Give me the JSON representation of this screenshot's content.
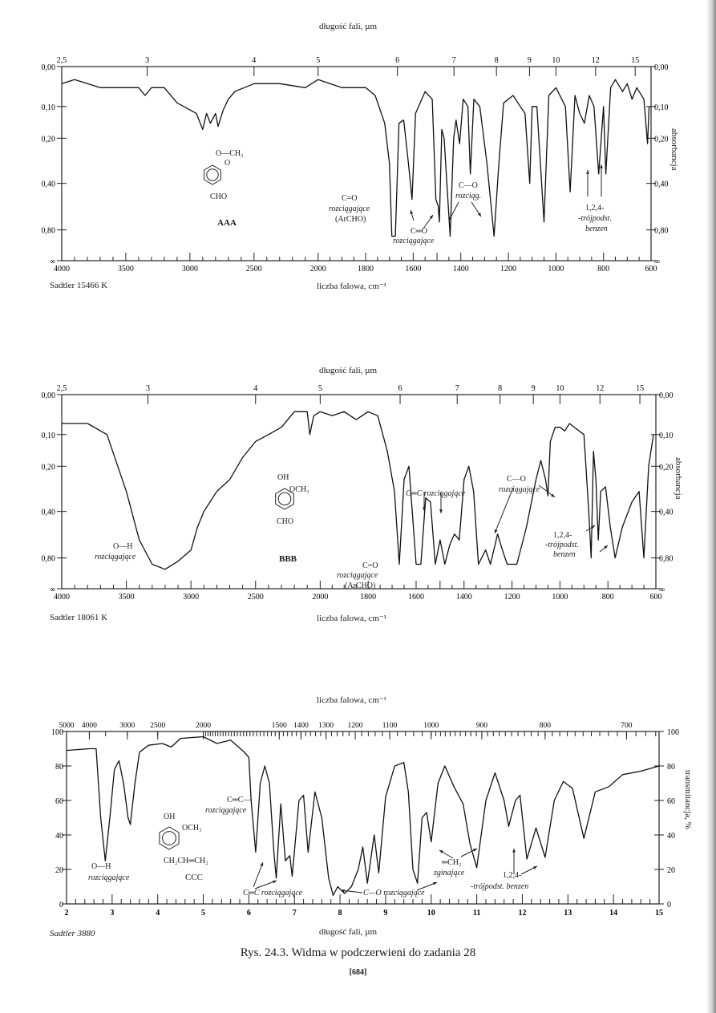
{
  "chart_data": [
    {
      "type": "line",
      "name_label": "AAA",
      "source": "Sadtler 15466 K",
      "top_axis_title": "długość fali, µm",
      "bottom_axis_title": "liczba falowa, cm⁻¹",
      "right_axis_title": "absorbancja",
      "y_scale": "absorbance (linear in transmittance)",
      "x_ticks_wavenumber": [
        "4000",
        "3500",
        "3000",
        "2500",
        "2000",
        "1800",
        "1600",
        "1400",
        "1200",
        "1000",
        "800",
        "600"
      ],
      "x_ticks_wavelength": [
        "2,5",
        "3",
        "4",
        "5",
        "6",
        "7",
        "8",
        "9",
        "10",
        "12",
        "15"
      ],
      "y_ticks_left": [
        "0,00",
        "0,10",
        "0,20",
        "0,40",
        "0,80",
        "∞"
      ],
      "y_ticks_right": [
        "0,00",
        "0,10",
        "0,20",
        "0,40",
        "0,80",
        "∞"
      ],
      "xlim": [
        4000,
        600
      ],
      "ylim": [
        0,
        "∞"
      ],
      "x": [
        4000,
        3900,
        3700,
        3400,
        3350,
        3300,
        3200,
        3100,
        3000,
        2950,
        2900,
        2870,
        2840,
        2800,
        2780,
        2740,
        2700,
        2650,
        2500,
        2300,
        2100,
        2000,
        1900,
        1800,
        1760,
        1720,
        1700,
        1690,
        1675,
        1660,
        1640,
        1620,
        1605,
        1590,
        1550,
        1520,
        1505,
        1495,
        1490,
        1480,
        1470,
        1445,
        1430,
        1420,
        1405,
        1390,
        1370,
        1360,
        1345,
        1320,
        1290,
        1260,
        1240,
        1220,
        1180,
        1150,
        1130,
        1110,
        1100,
        1080,
        1050,
        1030,
        1000,
        960,
        940,
        920,
        900,
        880,
        860,
        840,
        820,
        800,
        790,
        770,
        750,
        720,
        700,
        680,
        660,
        630,
        615,
        608
      ],
      "y": [
        0.04,
        0.03,
        0.05,
        0.05,
        0.07,
        0.05,
        0.05,
        0.09,
        0.11,
        0.12,
        0.17,
        0.12,
        0.15,
        0.12,
        0.16,
        0.11,
        0.08,
        0.06,
        0.04,
        0.04,
        0.05,
        0.03,
        0.05,
        0.05,
        0.07,
        0.15,
        0.3,
        0.9,
        0.9,
        0.15,
        0.14,
        0.3,
        0.5,
        0.12,
        0.06,
        0.08,
        0.5,
        0.55,
        0.7,
        0.17,
        0.2,
        0.9,
        0.2,
        0.14,
        0.22,
        0.08,
        0.1,
        0.35,
        0.08,
        0.1,
        0.3,
        0.9,
        0.3,
        0.09,
        0.07,
        0.1,
        0.12,
        0.4,
        0.1,
        0.1,
        0.7,
        0.07,
        0.05,
        0.1,
        0.45,
        0.07,
        0.12,
        0.15,
        0.07,
        0.1,
        0.35,
        0.1,
        0.35,
        0.05,
        0.03,
        0.06,
        0.04,
        0.08,
        0.05,
        0.08,
        0.22,
        0.1
      ],
      "annotations": {
        "co_arch_1": "C=O",
        "co_arch_2": "rozciągające",
        "co_arch_3": "(ArCHO)",
        "cc_1": "C═O",
        "cc_2": "rozciągające",
        "co_1": "C—O",
        "co_2": "rozciąg.",
        "tri_1": "1,2,4-",
        "tri_2": "-trójpodst.",
        "tri_3": "benzen",
        "struct_top": "O—CH₂",
        "struct_o": "O",
        "struct_cho": "CHO"
      }
    },
    {
      "type": "line",
      "name_label": "BBB",
      "source": "Sadtler 18061 K",
      "top_axis_title": "długość fali, µm",
      "bottom_axis_title": "liczba falowa, cm⁻¹",
      "right_axis_title": "absorbancja",
      "y_scale": "absorbance (linear in transmittance)",
      "x_ticks_wavenumber": [
        "4000",
        "3500",
        "3000",
        "2500",
        "2000",
        "1800",
        "1600",
        "1400",
        "1200",
        "1000",
        "800",
        "600"
      ],
      "x_ticks_wavelength": [
        "2,5",
        "3",
        "4",
        "5",
        "6",
        "7",
        "8",
        "9",
        "10",
        "12",
        "15"
      ],
      "y_ticks_left": [
        "0,00",
        "0,10",
        "0,20",
        "0,40",
        "0,80",
        "∞"
      ],
      "y_ticks_right": [
        "0,00",
        "0,10",
        "0,20",
        "0,40",
        "0,80",
        "∞"
      ],
      "xlim": [
        4000,
        600
      ],
      "ylim": [
        0,
        "∞"
      ],
      "x": [
        4000,
        3800,
        3650,
        3500,
        3400,
        3300,
        3200,
        3100,
        3000,
        2950,
        2900,
        2800,
        2700,
        2600,
        2500,
        2400,
        2300,
        2200,
        2100,
        2080,
        2050,
        2000,
        1950,
        1900,
        1850,
        1800,
        1760,
        1720,
        1690,
        1670,
        1650,
        1630,
        1600,
        1580,
        1560,
        1540,
        1520,
        1500,
        1480,
        1460,
        1440,
        1420,
        1400,
        1380,
        1360,
        1340,
        1310,
        1290,
        1260,
        1240,
        1220,
        1180,
        1140,
        1100,
        1080,
        1060,
        1050,
        1040,
        1020,
        1000,
        980,
        960,
        940,
        900,
        880,
        870,
        860,
        850,
        840,
        830,
        810,
        790,
        770,
        740,
        700,
        670,
        650,
        630,
        610
      ],
      "y": [
        0.07,
        0.07,
        0.1,
        0.3,
        0.6,
        0.9,
        1.0,
        0.85,
        0.7,
        0.5,
        0.4,
        0.3,
        0.25,
        0.17,
        0.12,
        0.1,
        0.08,
        0.04,
        0.04,
        0.1,
        0.05,
        0.04,
        0.05,
        0.04,
        0.06,
        0.04,
        0.05,
        0.15,
        0.3,
        0.9,
        0.25,
        0.2,
        0.9,
        0.9,
        0.33,
        0.35,
        0.9,
        0.6,
        0.9,
        0.65,
        0.55,
        0.6,
        0.25,
        0.2,
        0.3,
        0.9,
        0.7,
        0.9,
        0.55,
        0.7,
        0.9,
        0.9,
        0.5,
        0.25,
        0.18,
        0.25,
        0.32,
        0.12,
        0.08,
        0.08,
        0.09,
        0.07,
        0.08,
        0.1,
        0.4,
        0.8,
        0.15,
        0.25,
        0.6,
        0.3,
        0.28,
        0.5,
        0.8,
        0.5,
        0.35,
        0.3,
        0.8,
        0.2,
        0.1
      ],
      "annotations": {
        "oh_1": "O—H",
        "oh_2": "rozciągające",
        "cc_label": "C═C rozciągające",
        "co_1": "C—O",
        "co_2": "rozciągające",
        "co_arch_1": "C=O",
        "co_arch_2": "rozciągające",
        "co_arch_3": "(ArCHO)",
        "tri_1": "1,2,4-",
        "tri_2": "-trójpodst.",
        "tri_3": "benzen",
        "struct_oh": "OH",
        "struct_och3": "OCH₃",
        "struct_cho": "CHO"
      }
    },
    {
      "type": "line",
      "name_label": "CCC",
      "source": "Sadtler 3880",
      "top_axis_title": "liczba falowa, cm⁻¹",
      "bottom_axis_title": "długość fali, µm",
      "right_axis_title": "transmitancja, %",
      "y_scale": "transmittance %",
      "x_ticks_wavelength": [
        "2",
        "3",
        "4",
        "5",
        "6",
        "7",
        "8",
        "9",
        "10",
        "11",
        "12",
        "13",
        "14",
        "15"
      ],
      "x_ticks_wavenumber": [
        "5000",
        "4000",
        "3000",
        "2500",
        "2000",
        "1500",
        "1400",
        "1300",
        "1200",
        "1100",
        "1000",
        "900",
        "800",
        "700"
      ],
      "y_ticks_left": [
        "0",
        "20",
        "40",
        "60",
        "80",
        "100"
      ],
      "y_ticks_right": [
        "0",
        "20",
        "40",
        "60",
        "80",
        "100"
      ],
      "xlim": [
        2,
        15
      ],
      "ylim": [
        0,
        100
      ],
      "x": [
        2,
        2.5,
        2.65,
        2.75,
        2.85,
        2.95,
        3.05,
        3.15,
        3.25,
        3.35,
        3.4,
        3.5,
        3.6,
        3.8,
        4.1,
        4.3,
        4.5,
        5,
        5.3,
        5.6,
        5.9,
        6.0,
        6.05,
        6.15,
        6.25,
        6.35,
        6.45,
        6.55,
        6.6,
        6.7,
        6.8,
        6.9,
        6.95,
        7.1,
        7.2,
        7.3,
        7.45,
        7.6,
        7.75,
        7.85,
        7.95,
        8.1,
        8.25,
        8.4,
        8.5,
        8.6,
        8.75,
        8.85,
        9.0,
        9.2,
        9.4,
        9.5,
        9.6,
        9.7,
        9.8,
        9.9,
        10.0,
        10.15,
        10.3,
        10.5,
        10.7,
        10.85,
        11.0,
        11.2,
        11.4,
        11.6,
        11.7,
        11.85,
        11.95,
        12.1,
        12.3,
        12.5,
        12.7,
        12.9,
        13.1,
        13.35,
        13.6,
        13.9,
        14.2,
        14.6,
        15
      ],
      "y": [
        89,
        90,
        90,
        50,
        25,
        50,
        78,
        83,
        70,
        50,
        46,
        70,
        88,
        92,
        93,
        91,
        96,
        97,
        93,
        95,
        88,
        85,
        60,
        30,
        70,
        80,
        70,
        30,
        15,
        58,
        25,
        28,
        16,
        60,
        63,
        30,
        65,
        50,
        15,
        5,
        10,
        6,
        10,
        20,
        33,
        12,
        40,
        18,
        62,
        80,
        82,
        65,
        20,
        12,
        50,
        53,
        36,
        70,
        80,
        68,
        58,
        35,
        21,
        60,
        76,
        60,
        45,
        60,
        63,
        26,
        44,
        27,
        60,
        71,
        67,
        38,
        65,
        68,
        75,
        77,
        80
      ],
      "annotations": {
        "oh_1": "O—H",
        "oh_2": "rozciągające",
        "ccvinyl_1": "C═C—",
        "ccvinyl_2": "rozciągające",
        "cc_label": "C═C rozciągające",
        "co_label": "C—O rozciągające",
        "ch2_1": "═CH₂",
        "ch2_2": "zginające",
        "tri_1": "1,2,4-",
        "tri_2": "-trójpodst. benzen",
        "struct_oh": "OH",
        "struct_och3": "OCH₃",
        "struct_chain": "CH₂CH═CH₂"
      }
    }
  ],
  "page": {
    "caption": "Rys. 24.3. Widma w podczerwieni do zadania 28",
    "page_number": "[684]"
  },
  "colors": {
    "ink": "#1a1a1a",
    "paper": "#ffffff"
  }
}
